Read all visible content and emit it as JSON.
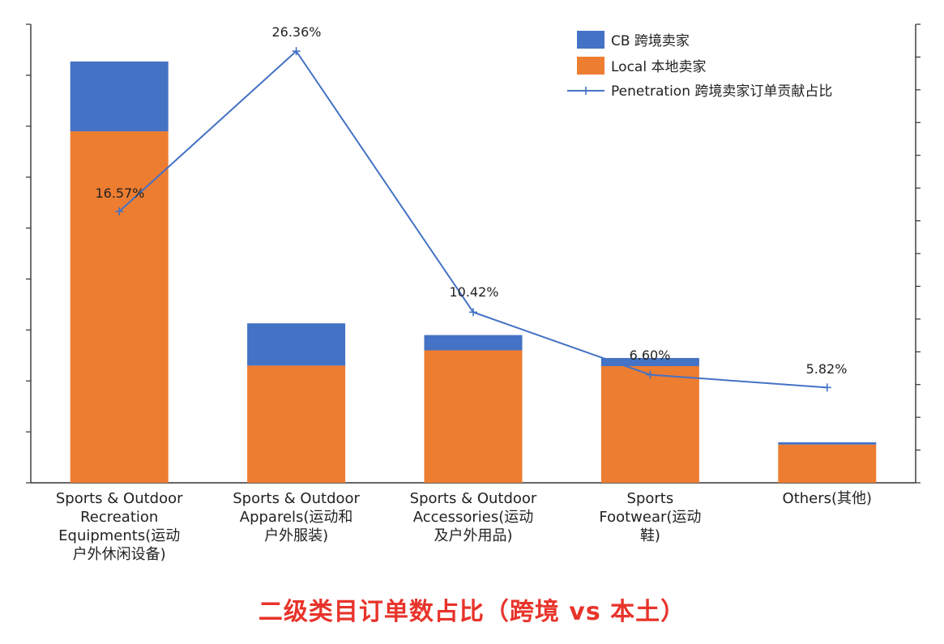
{
  "chart_data": {
    "type": "bar",
    "stacked": true,
    "categories": [
      [
        "Sports & Outdoor",
        "Recreation",
        "Equipments(运动",
        "户外休闲设备)"
      ],
      [
        "Sports & Outdoor",
        "Apparels(运动和",
        "户外服装)"
      ],
      [
        "Sports & Outdoor",
        "Accessories(运动",
        "及户外用品)"
      ],
      [
        "Sports",
        "Footwear(运动",
        "鞋)"
      ],
      [
        "Others(其他)"
      ]
    ],
    "series": [
      {
        "name": "Local 本地卖家",
        "type": "bar",
        "color": "#ed7d31",
        "values": [
          69,
          23,
          26,
          22.9,
          7.5
        ]
      },
      {
        "name": "CB 跨境卖家",
        "type": "bar",
        "color": "#4472c4",
        "values": [
          13.7,
          8.3,
          3,
          1.6,
          0.45
        ]
      },
      {
        "name": "Penetration 跨境卖家订单贡献占比",
        "type": "line",
        "axis": "right",
        "color": "#4472c4",
        "values": [
          16.57,
          26.36,
          10.42,
          6.6,
          5.82
        ],
        "labels": [
          "16.57%",
          "26.36%",
          "10.42%",
          "6.60%",
          "5.82%"
        ]
      }
    ],
    "ylim_left": [
      0,
      90
    ],
    "ylim_right": [
      0,
      28
    ],
    "left_tick_count": 9,
    "right_tick_count": 14,
    "legend_position": "top-right",
    "grid": false,
    "title": "二级类目订单数占比（跨境 vs 本土）"
  }
}
